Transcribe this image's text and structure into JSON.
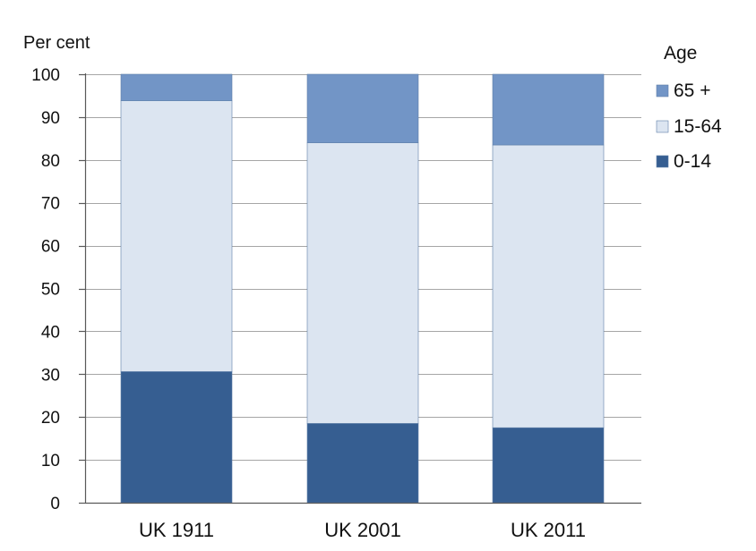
{
  "chart_data": {
    "type": "bar",
    "stacked": true,
    "title": "",
    "ylabel": "Per cent",
    "xlabel": "",
    "ylim": [
      0,
      100
    ],
    "yticks": [
      0,
      10,
      20,
      30,
      40,
      50,
      60,
      70,
      80,
      90,
      100
    ],
    "grid": true,
    "categories": [
      "UK 1911",
      "UK 2001",
      "UK 2011"
    ],
    "legend": {
      "title": "Age",
      "placement": "right"
    },
    "series": [
      {
        "name": "0-14",
        "color": "#365e91",
        "values": [
          30.6,
          18.5,
          17.5
        ]
      },
      {
        "name": "15-64",
        "color": "#dce5f1",
        "values": [
          63.2,
          65.5,
          66.0
        ]
      },
      {
        "name": "65 +",
        "color": "#7295c6",
        "values": [
          6.2,
          16.0,
          16.5
        ]
      }
    ],
    "legend_order": [
      "65 +",
      "15-64",
      "0-14"
    ]
  }
}
